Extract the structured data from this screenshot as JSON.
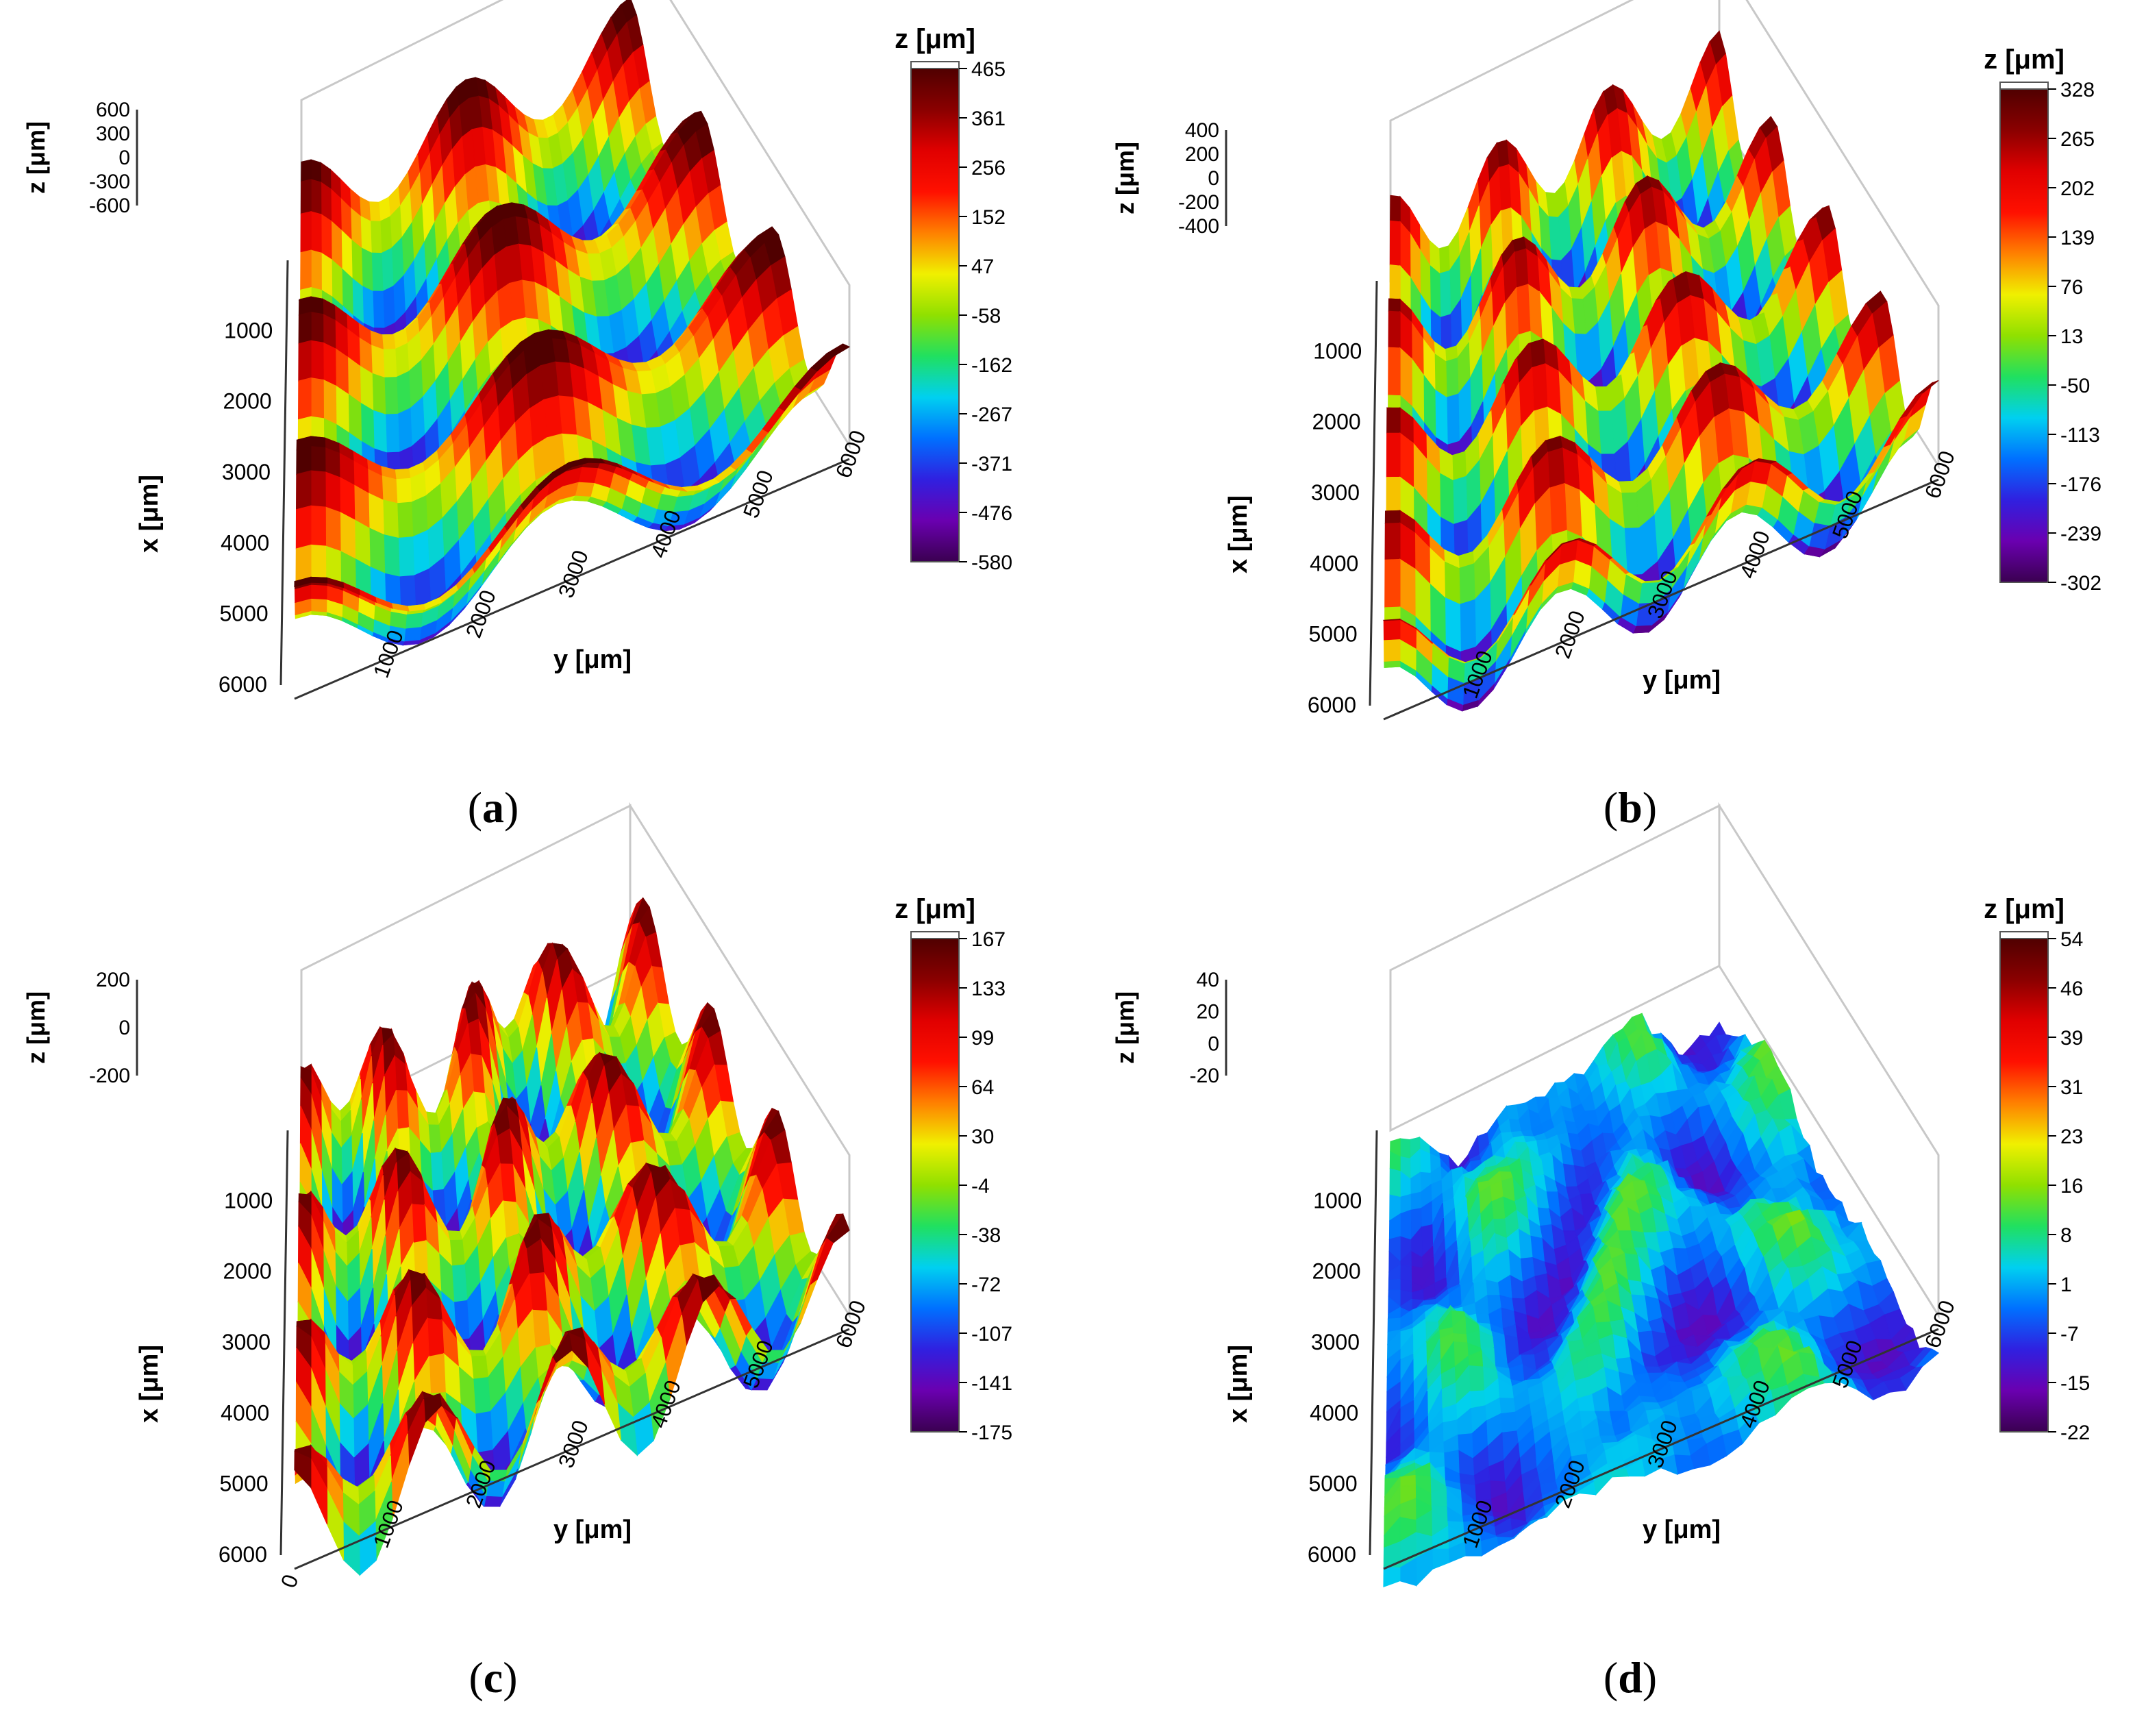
{
  "figure": {
    "palette": [
      "#3a0050",
      "#6a00b0",
      "#3020e0",
      "#0070ff",
      "#00d0f0",
      "#20e060",
      "#90e000",
      "#f0f000",
      "#ff8000",
      "#ff1000",
      "#e00000",
      "#8a0000",
      "#500000"
    ]
  },
  "chart_data": [
    {
      "id": "a",
      "caption": "a",
      "type": "surface",
      "title": "",
      "xlabel": "x [μm]",
      "ylabel": "y [μm]",
      "zlabel": "z [μm]",
      "x_ticks": [
        "1000",
        "2000",
        "3000",
        "4000",
        "5000",
        "6000"
      ],
      "y_ticks": [
        "1000",
        "2000",
        "3000",
        "4000",
        "5000",
        "6000"
      ],
      "z_ticks": [
        "600",
        "300",
        "0",
        "-300",
        "-600"
      ],
      "colorbar_label": "z [μm]",
      "colorbar_ticks": [
        "465",
        "361",
        "256",
        "152",
        "47",
        "-58",
        "-162",
        "-267",
        "-371",
        "-476",
        "-580"
      ],
      "zlim": [
        -580,
        465
      ],
      "xlim": [
        0,
        6000
      ],
      "ylim": [
        0,
        6000
      ],
      "surface": {
        "pattern": "periodic",
        "wavelength_x": 2000,
        "wavelength_y": 3000,
        "amplitude": 520
      }
    },
    {
      "id": "b",
      "caption": "b",
      "type": "surface",
      "title": "",
      "xlabel": "x [μm]",
      "ylabel": "y [μm]",
      "zlabel": "z [μm]",
      "x_ticks": [
        "1000",
        "2000",
        "3000",
        "4000",
        "5000",
        "6000"
      ],
      "y_ticks": [
        "1000",
        "2000",
        "3000",
        "4000",
        "5000",
        "6000"
      ],
      "z_ticks": [
        "400",
        "200",
        "0",
        "-200",
        "-400"
      ],
      "colorbar_label": "z [μm]",
      "colorbar_ticks": [
        "328",
        "265",
        "202",
        "139",
        "76",
        "13",
        "-50",
        "-113",
        "-176",
        "-239",
        "-302"
      ],
      "zlim": [
        -302,
        328
      ],
      "xlim": [
        0,
        6000
      ],
      "ylim": [
        0,
        6000
      ],
      "surface": {
        "pattern": "periodic",
        "wavelength_x": 1500,
        "wavelength_y": 2000,
        "amplitude": 315
      }
    },
    {
      "id": "c",
      "caption": "c",
      "type": "surface",
      "title": "",
      "xlabel": "x [μm]",
      "ylabel": "y [μm]",
      "zlabel": "z [μm]",
      "x_ticks": [
        "1000",
        "2000",
        "3000",
        "4000",
        "5000",
        "6000"
      ],
      "y_ticks": [
        "0",
        "1000",
        "2000",
        "3000",
        "4000",
        "5000",
        "6000"
      ],
      "z_ticks": [
        "200",
        "0",
        "-200"
      ],
      "colorbar_label": "z [μm]",
      "colorbar_ticks": [
        "167",
        "133",
        "99",
        "64",
        "30",
        "-4",
        "-38",
        "-72",
        "-107",
        "-141",
        "-175"
      ],
      "zlim": [
        -175,
        167
      ],
      "xlim": [
        0,
        6000
      ],
      "ylim": [
        0,
        6000
      ],
      "surface": {
        "pattern": "wavy",
        "wavelength_x": 1800,
        "wavelength_y": 1500,
        "amplitude": 171
      }
    },
    {
      "id": "d",
      "caption": "d",
      "type": "surface",
      "title": "",
      "xlabel": "x [μm]",
      "ylabel": "y [μm]",
      "zlabel": "z [μm]",
      "x_ticks": [
        "1000",
        "2000",
        "3000",
        "4000",
        "5000",
        "6000"
      ],
      "y_ticks": [
        "1000",
        "2000",
        "3000",
        "4000",
        "5000",
        "6000"
      ],
      "z_ticks": [
        "40",
        "20",
        "0",
        "-20"
      ],
      "colorbar_label": "z [μm]",
      "colorbar_ticks": [
        "54",
        "46",
        "39",
        "31",
        "23",
        "16",
        "8",
        "1",
        "-7",
        "-15",
        "-22"
      ],
      "zlim": [
        -22,
        54
      ],
      "xlim": [
        0,
        6000
      ],
      "ylim": [
        0,
        6000
      ],
      "surface": {
        "pattern": "random",
        "amplitude": 15
      }
    }
  ]
}
